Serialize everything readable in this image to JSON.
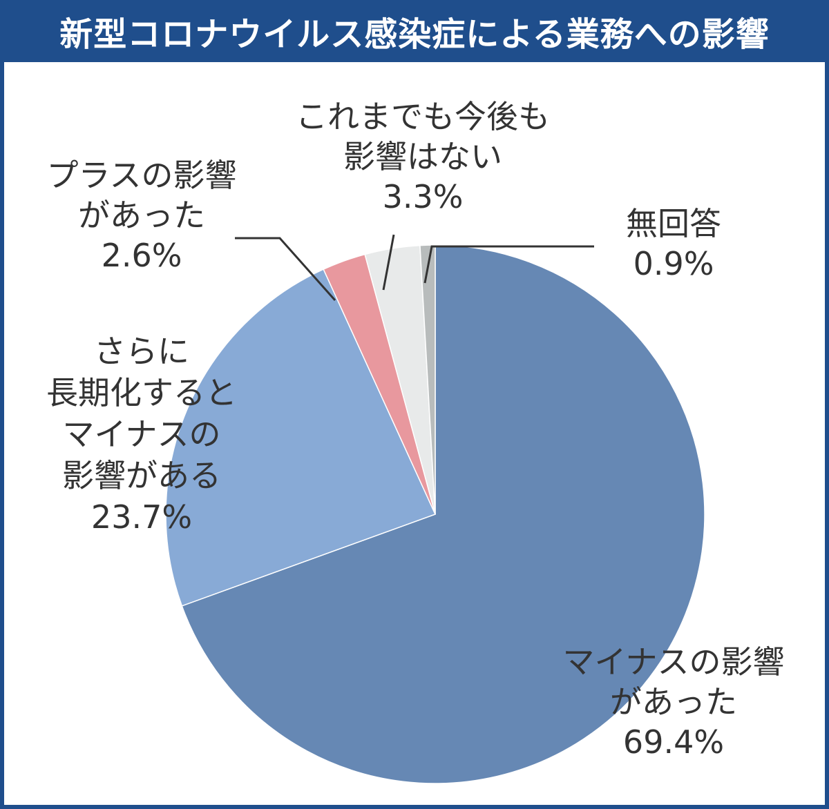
{
  "title": "新型コロナウイルス感染症による業務への影響",
  "colors": {
    "frame": "#1f4e8c",
    "title_text": "#ffffff",
    "label_text": "#333333",
    "leader_line": "#333333"
  },
  "chart_data": {
    "type": "pie",
    "title": "新型コロナウイルス感染症による業務への影響",
    "start": "12 o'clock",
    "direction": "clockwise",
    "slices": [
      {
        "label": "マイナスの影響があった",
        "label_lines": [
          "マイナスの影響",
          "があった"
        ],
        "value": 69.4,
        "value_text": "69.4%",
        "color": "#6688b4"
      },
      {
        "label": "さらに長期化するとマイナスの影響がある",
        "label_lines": [
          "さらに",
          "長期化すると",
          "マイナスの",
          "影響がある"
        ],
        "value": 23.7,
        "value_text": "23.7%",
        "color": "#88aad6"
      },
      {
        "label": "プラスの影響があった",
        "label_lines": [
          "プラスの影響",
          "があった"
        ],
        "value": 2.6,
        "value_text": "2.6%",
        "color": "#e8989e"
      },
      {
        "label": "これまでも今後も影響はない",
        "label_lines": [
          "これまでも今後も",
          "影響はない"
        ],
        "value": 3.3,
        "value_text": "3.3%",
        "color": "#e8eaea"
      },
      {
        "label": "無回答",
        "label_lines": [
          "無回答"
        ],
        "value": 0.9,
        "value_text": "0.9%",
        "color": "#b8bcbc"
      }
    ]
  }
}
